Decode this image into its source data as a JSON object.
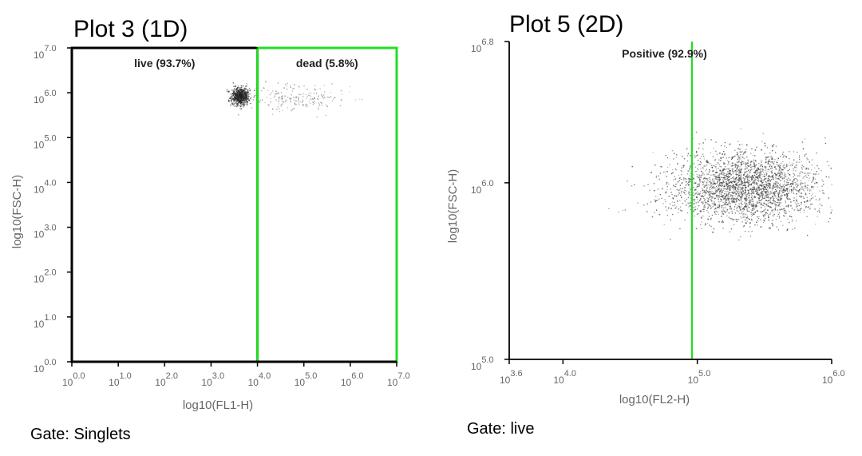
{
  "chart_data": [
    {
      "type": "scatter",
      "title": "Plot 3 (1D)",
      "xlabel": "log10(FL1-H)",
      "ylabel": "log10(FSC-H)",
      "xlim": [
        0.0,
        7.0
      ],
      "ylim": [
        0.0,
        7.0
      ],
      "xticks": [
        {
          "value": 0.0,
          "base": "10",
          "exp": "0.0"
        },
        {
          "value": 1.0,
          "base": "10",
          "exp": "1.0"
        },
        {
          "value": 2.0,
          "base": "10",
          "exp": "2.0"
        },
        {
          "value": 3.0,
          "base": "10",
          "exp": "3.0"
        },
        {
          "value": 4.0,
          "base": "10",
          "exp": "4.0"
        },
        {
          "value": 5.0,
          "base": "10",
          "exp": "5.0"
        },
        {
          "value": 6.0,
          "base": "10",
          "exp": "6.0"
        },
        {
          "value": 7.0,
          "base": "10",
          "exp": "7.0"
        }
      ],
      "yticks": [
        {
          "value": 0.0,
          "base": "10",
          "exp": "0.0"
        },
        {
          "value": 1.0,
          "base": "10",
          "exp": "1.0"
        },
        {
          "value": 2.0,
          "base": "10",
          "exp": "2.0"
        },
        {
          "value": 3.0,
          "base": "10",
          "exp": "3.0"
        },
        {
          "value": 4.0,
          "base": "10",
          "exp": "4.0"
        },
        {
          "value": 5.0,
          "base": "10",
          "exp": "5.0"
        },
        {
          "value": 6.0,
          "base": "10",
          "exp": "6.0"
        },
        {
          "value": 7.0,
          "base": "10",
          "exp": "7.0"
        }
      ],
      "gates": [
        {
          "label": "live (93.7%)",
          "x_range": [
            0.0,
            4.0
          ],
          "y_range": [
            0.0,
            7.0
          ],
          "color": "#000000"
        },
        {
          "label": "dead (5.8%)",
          "x_range": [
            4.0,
            7.0
          ],
          "y_range": [
            0.0,
            7.0
          ],
          "color": "#22dd22"
        }
      ],
      "populations": [
        {
          "x_center": 3.62,
          "y_center": 5.93,
          "x_spread": 0.1,
          "y_spread": 0.1,
          "count": 700,
          "color": "#222222"
        },
        {
          "x_center": 4.8,
          "y_center": 5.9,
          "x_spread": 0.6,
          "y_spread": 0.16,
          "count": 220,
          "color": "#777777"
        }
      ],
      "gate_footer": "Gate: Singlets"
    },
    {
      "type": "scatter",
      "title": "Plot 5 (2D)",
      "xlabel": "log10(FL2-H)",
      "ylabel": "log10(FSC-H)",
      "xlim": [
        3.6,
        6.0
      ],
      "ylim": [
        5.0,
        6.8
      ],
      "xticks": [
        {
          "value": 3.6,
          "base": "10",
          "exp": "3.6"
        },
        {
          "value": 4.0,
          "base": "10",
          "exp": "4.0"
        },
        {
          "value": 5.0,
          "base": "10",
          "exp": "5.0"
        },
        {
          "value": 6.0,
          "base": "10",
          "exp": "6.0"
        }
      ],
      "yticks": [
        {
          "value": 5.0,
          "base": "10",
          "exp": "5.0"
        },
        {
          "value": 6.0,
          "base": "10",
          "exp": "6.0"
        },
        {
          "value": 6.8,
          "base": "10",
          "exp": "6.8"
        }
      ],
      "gates": [
        {
          "label": "Positive (92.9%)",
          "x_range": [
            4.96,
            6.0
          ],
          "y_range": [
            5.0,
            6.8
          ],
          "color": "#22dd22"
        }
      ],
      "populations": [
        {
          "x_center": 5.35,
          "y_center": 5.98,
          "x_spread": 0.28,
          "y_spread": 0.1,
          "count": 2600,
          "color": "#333333"
        }
      ],
      "gate_footer": "Gate: live"
    }
  ]
}
